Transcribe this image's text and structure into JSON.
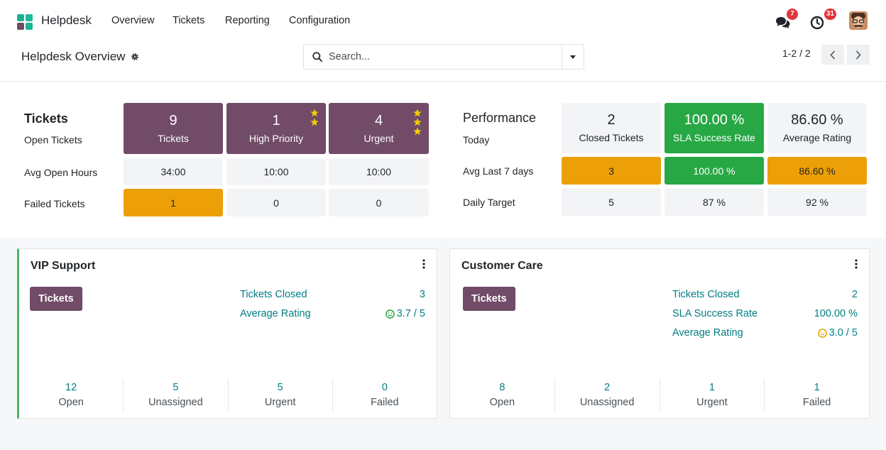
{
  "navbar": {
    "app_name": "Helpdesk",
    "menu": [
      "Overview",
      "Tickets",
      "Reporting",
      "Configuration"
    ],
    "messages_badge": "7",
    "activities_badge": "31"
  },
  "control_panel": {
    "title": "Helpdesk Overview",
    "search_placeholder": "Search...",
    "pager": "1-2 / 2"
  },
  "tickets": {
    "heading": "Tickets",
    "row_labels": [
      "Open Tickets",
      "Avg Open Hours",
      "Failed Tickets"
    ],
    "tiles": [
      {
        "value": "9",
        "label": "Tickets"
      },
      {
        "value": "1",
        "label": "High Priority"
      },
      {
        "value": "4",
        "label": "Urgent"
      }
    ],
    "avg_open_hours": [
      "34:00",
      "10:00",
      "10:00"
    ],
    "failed": [
      "1",
      "0",
      "0"
    ]
  },
  "performance": {
    "heading": "Performance",
    "row_labels": [
      "Today",
      "Avg Last 7 days",
      "Daily Target"
    ],
    "today": [
      {
        "value": "2",
        "label": "Closed Tickets"
      },
      {
        "value": "100.00 %",
        "label": "SLA Success Rate"
      },
      {
        "value": "86.60 %",
        "label": "Average Rating"
      }
    ],
    "last7": [
      "3",
      "100.00 %",
      "86.60 %"
    ],
    "target": [
      "5",
      "87 %",
      "92 %"
    ]
  },
  "teams": [
    {
      "name": "VIP Support",
      "button": "Tickets",
      "stats": [
        {
          "label": "Tickets Closed",
          "value": "3"
        },
        {
          "label": "Average Rating",
          "value": "3.7 / 5"
        }
      ],
      "footer": [
        {
          "num": "12",
          "label": "Open"
        },
        {
          "num": "5",
          "label": "Unassigned"
        },
        {
          "num": "5",
          "label": "Urgent"
        },
        {
          "num": "0",
          "label": "Failed"
        }
      ]
    },
    {
      "name": "Customer Care",
      "button": "Tickets",
      "stats": [
        {
          "label": "Tickets Closed",
          "value": "2"
        },
        {
          "label": "SLA Success Rate",
          "value": "100.00 %"
        },
        {
          "label": "Average Rating",
          "value": "3.0 / 5"
        }
      ],
      "footer": [
        {
          "num": "8",
          "label": "Open"
        },
        {
          "num": "2",
          "label": "Unassigned"
        },
        {
          "num": "1",
          "label": "Urgent"
        },
        {
          "num": "1",
          "label": "Failed"
        }
      ]
    }
  ],
  "colors": {
    "brand_purple": "#714b67",
    "orange": "#ec9f06",
    "green": "#28a745",
    "teal": "#017e84"
  }
}
